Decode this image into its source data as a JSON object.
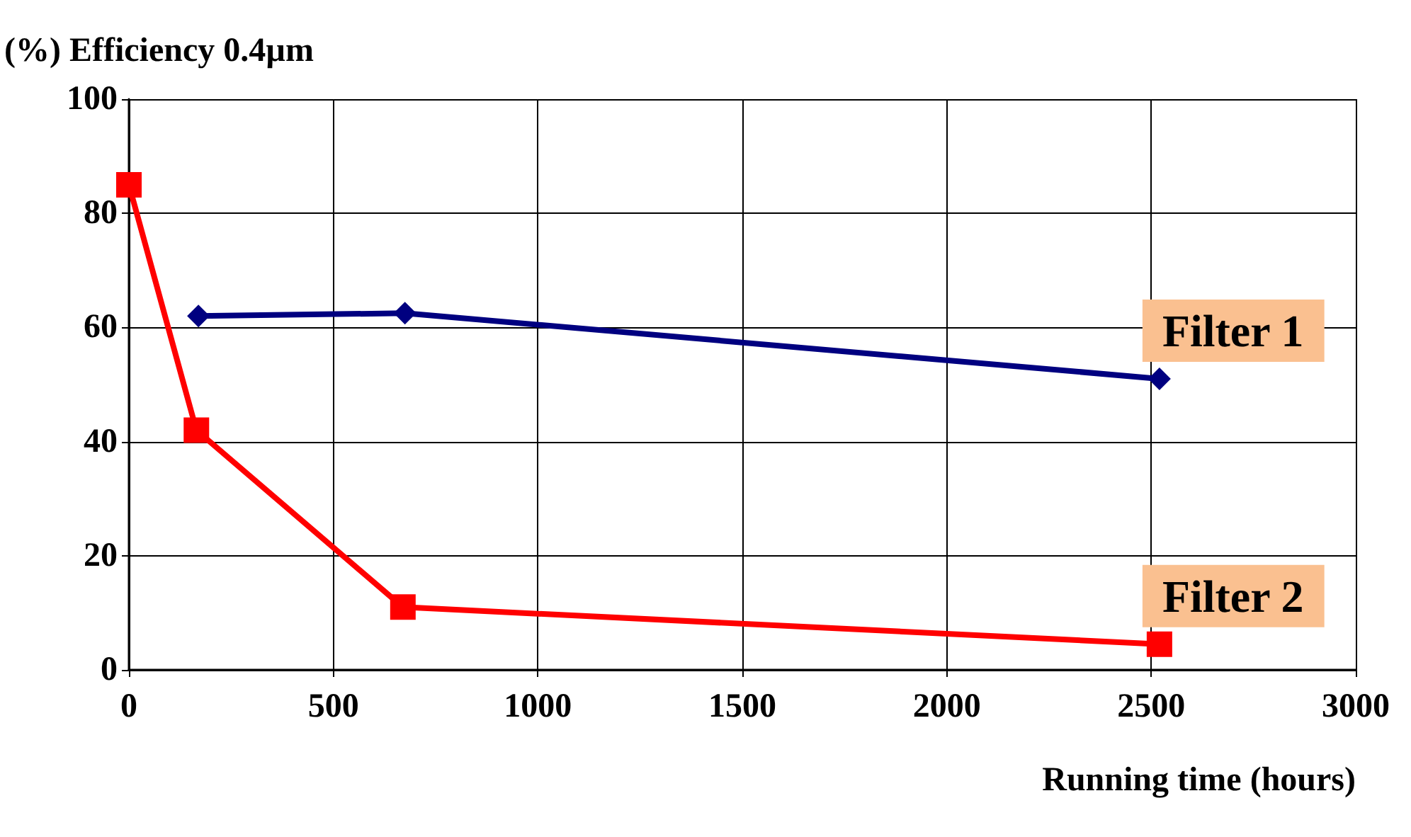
{
  "chart_data": {
    "type": "line",
    "ylabel": "(%) Efficiency 0.4µm",
    "xlabel": "Running time (hours)",
    "series": [
      {
        "name": "Filter 1",
        "color": "#000080",
        "marker": "diamond",
        "x": [
          170,
          675,
          2520
        ],
        "values": [
          62,
          62.5,
          51
        ]
      },
      {
        "name": "Filter 2",
        "color": "#ff0000",
        "marker": "square",
        "x": [
          0,
          165,
          670,
          2520
        ],
        "values": [
          85,
          42,
          11,
          4.5
        ]
      }
    ],
    "xlim": [
      0,
      3000
    ],
    "xticks": [
      0,
      500,
      1000,
      1500,
      2000,
      2500,
      3000
    ],
    "ylim": [
      0,
      100
    ],
    "yticks": [
      0,
      20,
      40,
      60,
      80,
      100
    ],
    "grid": true,
    "legend": false
  }
}
